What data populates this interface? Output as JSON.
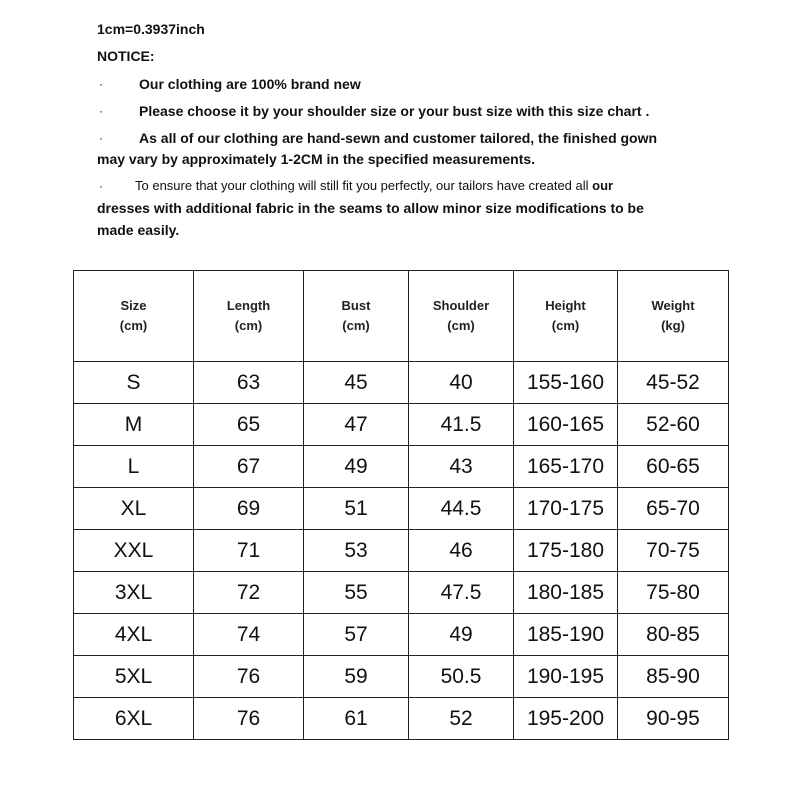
{
  "conversion": "1cm=0.3937inch",
  "notice_title": "NOTICE:",
  "bullet": "·",
  "notices": [
    "Our clothing are 100% brand new",
    "Please choose it by your shoulder size or your bust size with this size chart .",
    "As all of our clothing are hand-sewn and customer tailored, the finished gown",
    "may vary by approximately 1-2CM in the specified measurements.",
    "To ensure that your clothing will still fit you perfectly, our tailors have created all",
    "our",
    "dresses with additional fabric in the seams to allow minor size modifications to be",
    "made easily."
  ],
  "table": {
    "headers": [
      {
        "name": "Size",
        "unit": "(cm)"
      },
      {
        "name": "Length",
        "unit": "(cm)"
      },
      {
        "name": "Bust",
        "unit": "(cm)"
      },
      {
        "name": "Shoulder",
        "unit": "(cm)"
      },
      {
        "name": "Height",
        "unit": "(cm)"
      },
      {
        "name": "Weight",
        "unit": "(kg)"
      }
    ],
    "rows": [
      [
        "S",
        "63",
        "45",
        "40",
        "155-160",
        "45-52"
      ],
      [
        "M",
        "65",
        "47",
        "41.5",
        "160-165",
        "52-60"
      ],
      [
        "L",
        "67",
        "49",
        "43",
        "165-170",
        "60-65"
      ],
      [
        "XL",
        "69",
        "51",
        "44.5",
        "170-175",
        "65-70"
      ],
      [
        "XXL",
        "71",
        "53",
        "46",
        "175-180",
        "70-75"
      ],
      [
        "3XL",
        "72",
        "55",
        "47.5",
        "180-185",
        "75-80"
      ],
      [
        "4XL",
        "74",
        "57",
        "49",
        "185-190",
        "80-85"
      ],
      [
        "5XL",
        "76",
        "59",
        "50.5",
        "190-195",
        "85-90"
      ],
      [
        "6XL",
        "76",
        "61",
        "52",
        "195-200",
        "90-95"
      ]
    ]
  }
}
